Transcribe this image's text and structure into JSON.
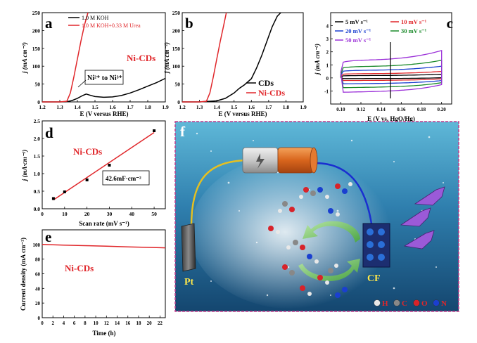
{
  "panels": {
    "a": {
      "letter": "a",
      "sample": "Ni-CDs",
      "ylabel": "j (mA cm⁻²)",
      "xlabel": "E (V versus RHE)",
      "annot_a": "Ni²⁺ to Ni³⁺"
    },
    "b": {
      "letter": "b",
      "ylabel": "j (mA cm⁻²)",
      "xlabel": "E (V versus RHE)"
    },
    "c": {
      "letter": "c",
      "ylabel": "j (mA cm⁻²)",
      "xlabel": "E (V vs. HgO/Hg)"
    },
    "d": {
      "letter": "d",
      "sample": "Ni-CDs",
      "ylabel": "j (mA·cm⁻²)",
      "xlabel": "Scan rate (mV s⁻¹)",
      "cap_label": "42.6mF·cm⁻²"
    },
    "e": {
      "letter": "e",
      "sample": "Ni-CDs",
      "ylabel": "Current density (mA cm⁻²)",
      "xlabel": "Time (h)"
    },
    "f": {
      "letter": "f",
      "pt_label": "Pt",
      "cf_label": "CF",
      "legend": [
        {
          "label": "H",
          "color": "#e8e8e8"
        },
        {
          "label": "C",
          "color": "#888888"
        },
        {
          "label": "O",
          "color": "#d8232a"
        },
        {
          "label": "N",
          "color": "#1a3fd0"
        }
      ]
    }
  },
  "chart_data": [
    {
      "type": "line",
      "panel": "a",
      "xlabel": "E (V versus RHE)",
      "ylabel": "j (mA cm⁻²)",
      "xlim": [
        1.2,
        1.9
      ],
      "ylim": [
        0,
        250
      ],
      "xticks": [
        "1.2",
        "1.3",
        "1.4",
        "1.5",
        "1.6",
        "1.7",
        "1.8",
        "1.9"
      ],
      "yticks": [
        "0",
        "50",
        "100",
        "150",
        "200",
        "250"
      ],
      "legend_position": "top-left",
      "series": [
        {
          "name": "1.0 M KOH",
          "color": "#000000",
          "x": [
            1.2,
            1.3,
            1.34,
            1.37,
            1.4,
            1.43,
            1.45,
            1.47,
            1.5,
            1.55,
            1.6,
            1.65,
            1.7,
            1.75,
            1.8,
            1.85,
            1.9
          ],
          "y": [
            0,
            0,
            0.5,
            4,
            10,
            18,
            22,
            19,
            15,
            13,
            14,
            18,
            25,
            34,
            44,
            54,
            66
          ]
        },
        {
          "name": "1.0 M KOH+0.33 M Urea",
          "color": "#e0262a",
          "x": [
            1.2,
            1.3,
            1.34,
            1.36,
            1.38,
            1.4,
            1.42,
            1.44,
            1.46
          ],
          "y": [
            0,
            0,
            2,
            25,
            70,
            120,
            170,
            215,
            250
          ]
        }
      ]
    },
    {
      "type": "line",
      "panel": "b",
      "xlabel": "E (V versus RHE)",
      "ylabel": "j (mA cm⁻²)",
      "xlim": [
        1.2,
        1.9
      ],
      "ylim": [
        0,
        250
      ],
      "xticks": [
        "1.2",
        "1.3",
        "1.4",
        "1.5",
        "1.6",
        "1.7",
        "1.8",
        "1.9"
      ],
      "yticks": [
        "0",
        "50",
        "100",
        "150",
        "200",
        "250"
      ],
      "legend_position": "bottom-right",
      "series": [
        {
          "name": "CDs",
          "color": "#000000",
          "x": [
            1.2,
            1.3,
            1.4,
            1.45,
            1.5,
            1.53,
            1.56,
            1.6,
            1.63,
            1.66,
            1.69,
            1.72,
            1.75,
            1.77
          ],
          "y": [
            0,
            0,
            3,
            10,
            25,
            38,
            48,
            65,
            95,
            130,
            170,
            210,
            240,
            250
          ]
        },
        {
          "name": "Ni-CDs",
          "color": "#e0262a",
          "x": [
            1.2,
            1.3,
            1.34,
            1.36,
            1.38,
            1.4,
            1.42,
            1.44,
            1.455
          ],
          "y": [
            0,
            0,
            2,
            25,
            70,
            120,
            170,
            215,
            250
          ]
        }
      ]
    },
    {
      "type": "line",
      "panel": "c",
      "xlabel": "E (V vs. HgO/Hg)",
      "ylabel": "j (mA cm⁻²)",
      "xlim": [
        0.09,
        0.21
      ],
      "ylim": [
        -2,
        5
      ],
      "xticks": [
        "0.10",
        "0.12",
        "0.14",
        "0.16",
        "0.18",
        "0.20"
      ],
      "yticks": [
        "-1",
        "0",
        "1",
        "2",
        "3",
        "4"
      ],
      "legend_position": "top",
      "series": [
        {
          "name": "5 mV s⁻¹",
          "color": "#000000",
          "upper": 0.28,
          "lower": -0.05
        },
        {
          "name": "10 mV s⁻¹",
          "color": "#e0262a",
          "upper": 0.5,
          "lower": -0.2
        },
        {
          "name": "20 mV s⁻¹",
          "color": "#1a3fd0",
          "upper": 0.9,
          "lower": -0.45
        },
        {
          "name": "30 mV s⁻¹",
          "color": "#1a8a2a",
          "upper": 1.35,
          "lower": -0.75
        },
        {
          "name": "50 mV s⁻¹",
          "color": "#9b30d8",
          "upper": 2.1,
          "lower": -1.1
        }
      ]
    },
    {
      "type": "scatter",
      "panel": "d",
      "xlabel": "Scan rate (mV s⁻¹)",
      "ylabel": "j (mA·cm⁻²)",
      "xlim": [
        0,
        55
      ],
      "ylim": [
        0,
        2.5
      ],
      "xticks": [
        "0",
        "10",
        "20",
        "30",
        "40",
        "50"
      ],
      "yticks": [
        "0.0",
        "0.5",
        "1.0",
        "1.5",
        "2.0",
        "2.5"
      ],
      "x": [
        5,
        10,
        20,
        30,
        50
      ],
      "y": [
        0.29,
        0.48,
        0.82,
        1.24,
        2.22
      ],
      "fit": {
        "x": [
          5,
          50
        ],
        "y": [
          0.25,
          2.17
        ],
        "color": "#e0262a"
      }
    },
    {
      "type": "line",
      "panel": "e",
      "xlabel": "Time (h)",
      "ylabel": "Current density (mA cm⁻²)",
      "xlim": [
        0,
        23
      ],
      "ylim": [
        0,
        120
      ],
      "xticks": [
        "0",
        "2",
        "4",
        "6",
        "8",
        "10",
        "12",
        "14",
        "16",
        "18",
        "20",
        "22"
      ],
      "yticks": [
        "0",
        "20",
        "40",
        "60",
        "80",
        "100"
      ],
      "series": [
        {
          "name": "",
          "color": "#e0262a",
          "x": [
            0,
            2,
            4,
            6,
            8,
            10,
            12,
            14,
            16,
            18,
            20,
            22,
            23
          ],
          "y": [
            100,
            99.6,
            99.2,
            98.8,
            98.4,
            98.0,
            97.6,
            97.2,
            96.8,
            96.4,
            96.0,
            95.6,
            95.4
          ]
        }
      ]
    }
  ]
}
